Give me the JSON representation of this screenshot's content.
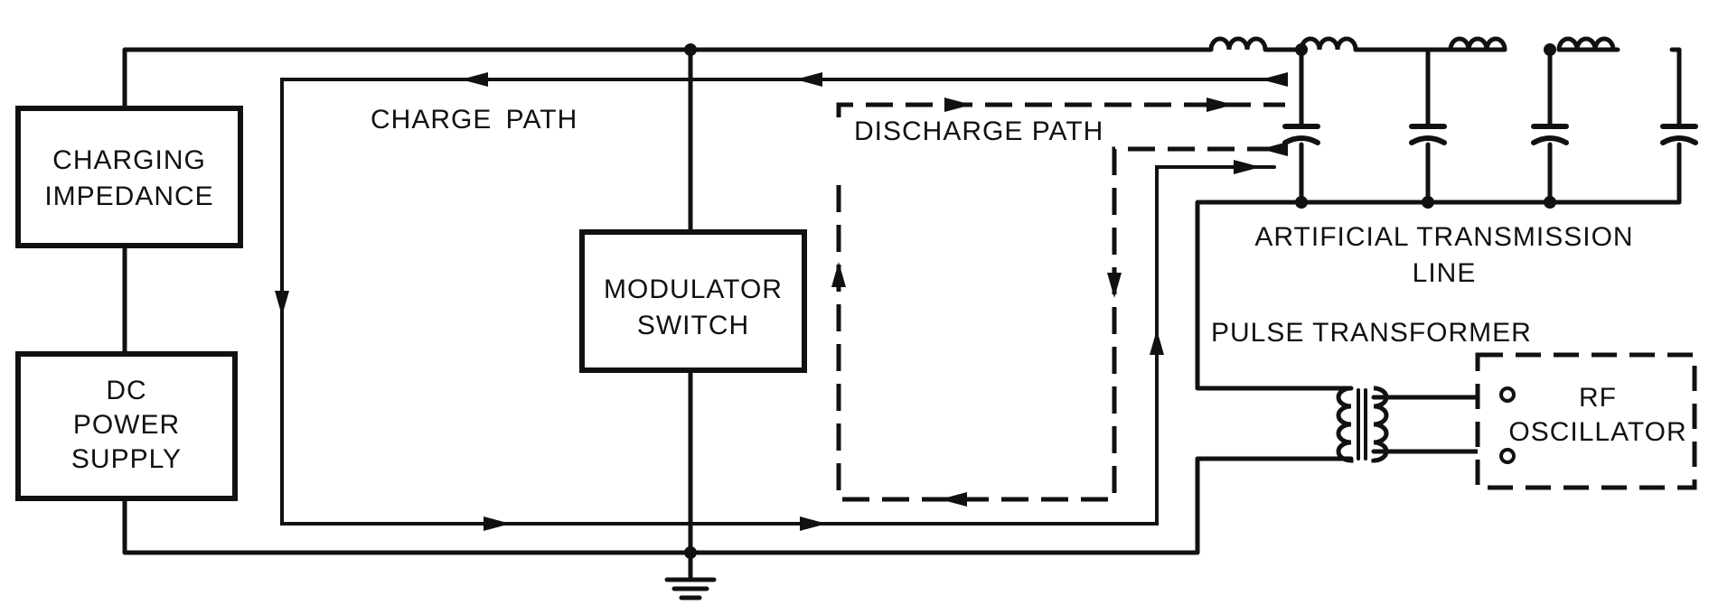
{
  "blocks": {
    "charging_impedance": [
      "CHARGING",
      "IMPEDANCE"
    ],
    "dc_power_supply": [
      "DC",
      "POWER",
      "SUPPLY"
    ],
    "modulator_switch": [
      "MODULATOR",
      "SWITCH"
    ],
    "rf_oscillator": [
      "RF",
      "OSCILLATOR"
    ]
  },
  "labels": {
    "charge_path": "CHARGE PATH",
    "discharge_path": "DISCHARGE PATH",
    "artificial_line": [
      "ARTIFICIAL TRANSMISSION",
      "LINE"
    ],
    "pulse_transformer": "PULSE TRANSFORMER"
  }
}
